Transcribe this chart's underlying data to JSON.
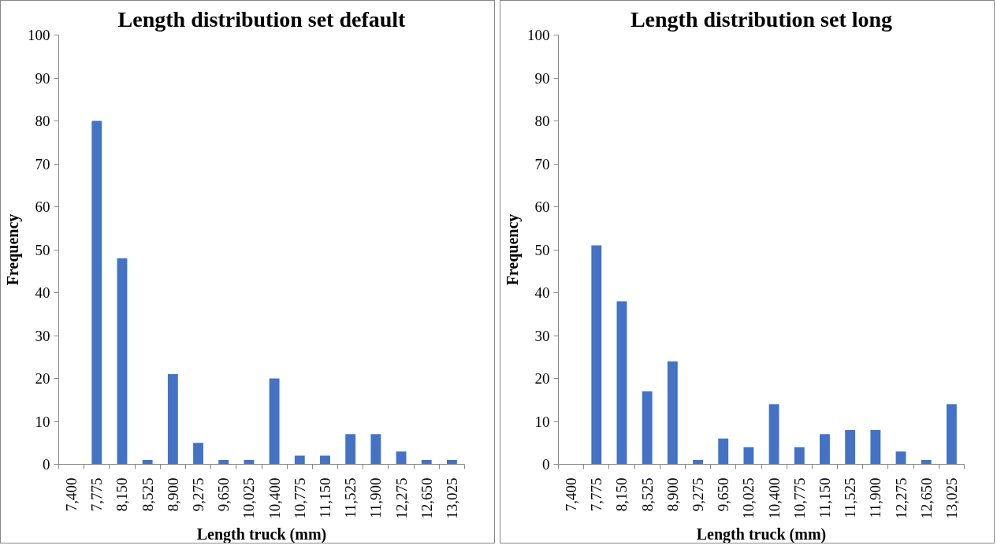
{
  "chart_data": [
    {
      "type": "bar",
      "title": "Length distribution set default",
      "xlabel": "Length truck (mm)",
      "ylabel": "Frequency",
      "categories": [
        "7,400",
        "7,775",
        "8,150",
        "8,525",
        "8,900",
        "9,275",
        "9,650",
        "10,025",
        "10,400",
        "10,775",
        "11,150",
        "11,525",
        "11,900",
        "12,275",
        "12,650",
        "13,025"
      ],
      "series": [
        {
          "color": "#4472c4",
          "values": [
            0,
            80,
            48,
            1,
            21,
            5,
            1,
            1,
            20,
            2,
            2,
            7,
            7,
            3,
            1,
            1
          ]
        }
      ],
      "ylim": [
        0,
        100
      ],
      "yticks": [
        0,
        10,
        20,
        30,
        40,
        50,
        60,
        70,
        80,
        90,
        100
      ],
      "grid": false
    },
    {
      "type": "bar",
      "title": "Length distribution set long",
      "xlabel": "Length truck (mm)",
      "ylabel": "Frequency",
      "categories": [
        "7,400",
        "7,775",
        "8,150",
        "8,525",
        "8,900",
        "9,275",
        "9,650",
        "10,025",
        "10,400",
        "10,775",
        "11,150",
        "11,525",
        "11,900",
        "12,275",
        "12,650",
        "13,025"
      ],
      "series": [
        {
          "color": "#4472c4",
          "values": [
            0,
            51,
            38,
            17,
            24,
            1,
            6,
            4,
            14,
            4,
            7,
            8,
            8,
            3,
            1,
            14
          ]
        }
      ],
      "ylim": [
        0,
        100
      ],
      "yticks": [
        0,
        10,
        20,
        30,
        40,
        50,
        60,
        70,
        80,
        90,
        100
      ],
      "grid": false
    }
  ]
}
